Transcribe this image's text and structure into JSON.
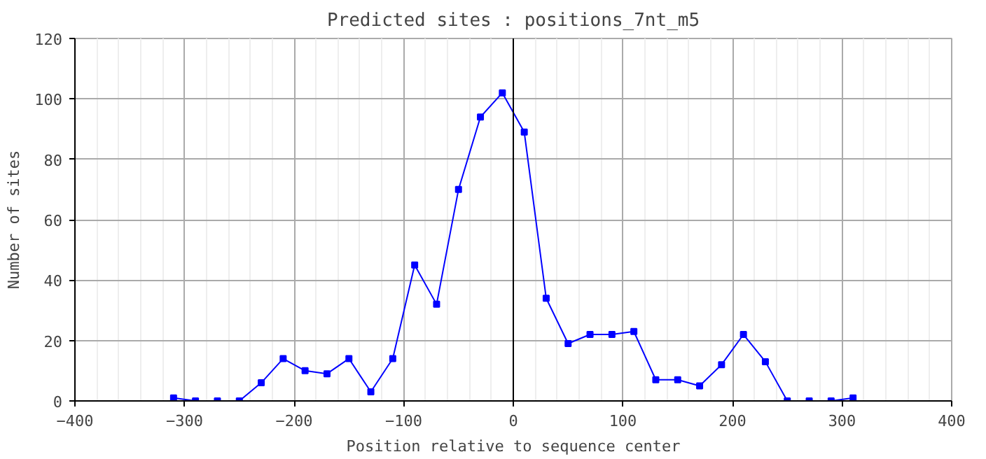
{
  "chart_data": {
    "type": "line",
    "title": "Predicted sites : positions_7nt_m5",
    "xlabel": "Position relative to sequence center",
    "ylabel": "Number of sites",
    "x": [
      -310,
      -290,
      -270,
      -250,
      -230,
      -210,
      -190,
      -170,
      -150,
      -130,
      -110,
      -90,
      -70,
      -50,
      -30,
      -10,
      10,
      30,
      50,
      70,
      90,
      110,
      130,
      150,
      170,
      190,
      210,
      230,
      250,
      270,
      290,
      310
    ],
    "series": [
      {
        "color": "#0000ff",
        "values": [
          1,
          0,
          0,
          0,
          6,
          14,
          10,
          9,
          14,
          3,
          14,
          45,
          32,
          70,
          94,
          102,
          89,
          34,
          19,
          22,
          22,
          23,
          7,
          7,
          5,
          12,
          22,
          13,
          0,
          0,
          0,
          1
        ]
      }
    ],
    "xlim": [
      -400,
      400
    ],
    "xticks": [
      -400,
      -300,
      -200,
      -100,
      0,
      100,
      200,
      300,
      400
    ],
    "ylim": [
      0,
      120
    ],
    "yticks": [
      0,
      20,
      40,
      60,
      80,
      100,
      120
    ],
    "ref_lines": [
      {
        "axis": "x",
        "value": 0,
        "color": "#000000"
      }
    ],
    "grid": true,
    "marker": "square",
    "line_style": "solid"
  }
}
